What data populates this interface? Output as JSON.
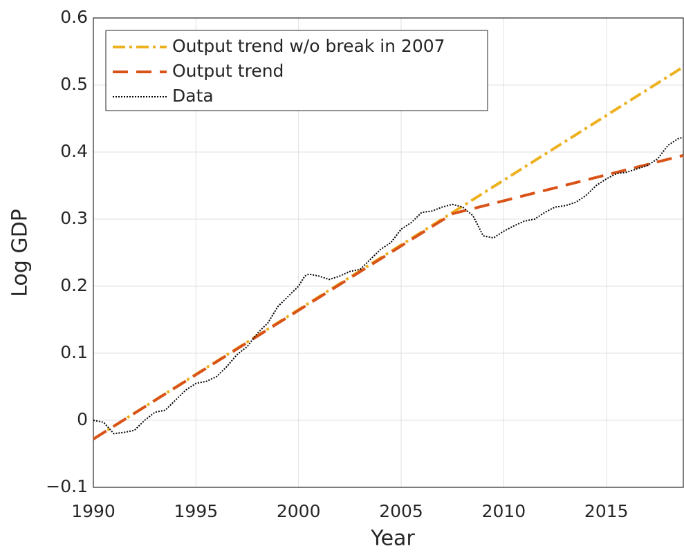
{
  "chart_data": {
    "type": "line",
    "x_label": "Year",
    "y_label": "Log GDP",
    "xlim": [
      1990,
      2018.75
    ],
    "ylim": [
      -0.1,
      0.6
    ],
    "xticks": [
      1990,
      1995,
      2000,
      2005,
      2010,
      2015
    ],
    "yticks": [
      {
        "value": -0.1,
        "label": "−0.1"
      },
      0,
      0.1,
      0.2,
      0.3,
      0.4,
      0.5,
      0.6
    ],
    "grid": true,
    "legend": "upper left",
    "series": [
      {
        "name": "Output trend w/o break in 2007",
        "color": "#edb120",
        "style": "dashdot",
        "x": [
          1990,
          2018.75
        ],
        "values": [
          -0.028,
          0.527
        ]
      },
      {
        "name": "Output trend",
        "color": "#d95319",
        "style": "dashed",
        "x": [
          1990,
          2007.5,
          2018.75
        ],
        "values": [
          -0.028,
          0.308,
          0.395
        ]
      },
      {
        "name": "Data",
        "color": "#000000",
        "style": "dotted",
        "x": [
          1990,
          1990.5,
          1991,
          1991.5,
          1992,
          1992.5,
          1993,
          1993.5,
          1994,
          1994.5,
          1995,
          1995.5,
          1996,
          1996.5,
          1997,
          1997.5,
          1998,
          1998.5,
          1999,
          1999.5,
          2000,
          2000.3,
          2000.5,
          2001,
          2001.5,
          2002,
          2002.5,
          2003,
          2003.5,
          2004,
          2004.5,
          2005,
          2005.5,
          2006,
          2006.5,
          2007,
          2007.5,
          2008,
          2008.5,
          2009,
          2009.5,
          2010,
          2010.5,
          2011,
          2011.5,
          2012,
          2012.5,
          2013,
          2013.5,
          2014,
          2014.5,
          2015,
          2015.5,
          2016,
          2016.5,
          2017,
          2017.5,
          2018,
          2018.5,
          2018.75
        ],
        "values": [
          0.0,
          -0.003,
          -0.02,
          -0.018,
          -0.015,
          0.0,
          0.012,
          0.015,
          0.03,
          0.045,
          0.055,
          0.058,
          0.065,
          0.08,
          0.098,
          0.11,
          0.13,
          0.145,
          0.17,
          0.185,
          0.2,
          0.215,
          0.218,
          0.215,
          0.21,
          0.215,
          0.222,
          0.225,
          0.24,
          0.255,
          0.265,
          0.285,
          0.295,
          0.31,
          0.312,
          0.318,
          0.322,
          0.318,
          0.305,
          0.275,
          0.272,
          0.282,
          0.29,
          0.297,
          0.3,
          0.31,
          0.318,
          0.32,
          0.325,
          0.335,
          0.35,
          0.36,
          0.368,
          0.37,
          0.375,
          0.38,
          0.39,
          0.41,
          0.42,
          0.422
        ]
      }
    ]
  }
}
